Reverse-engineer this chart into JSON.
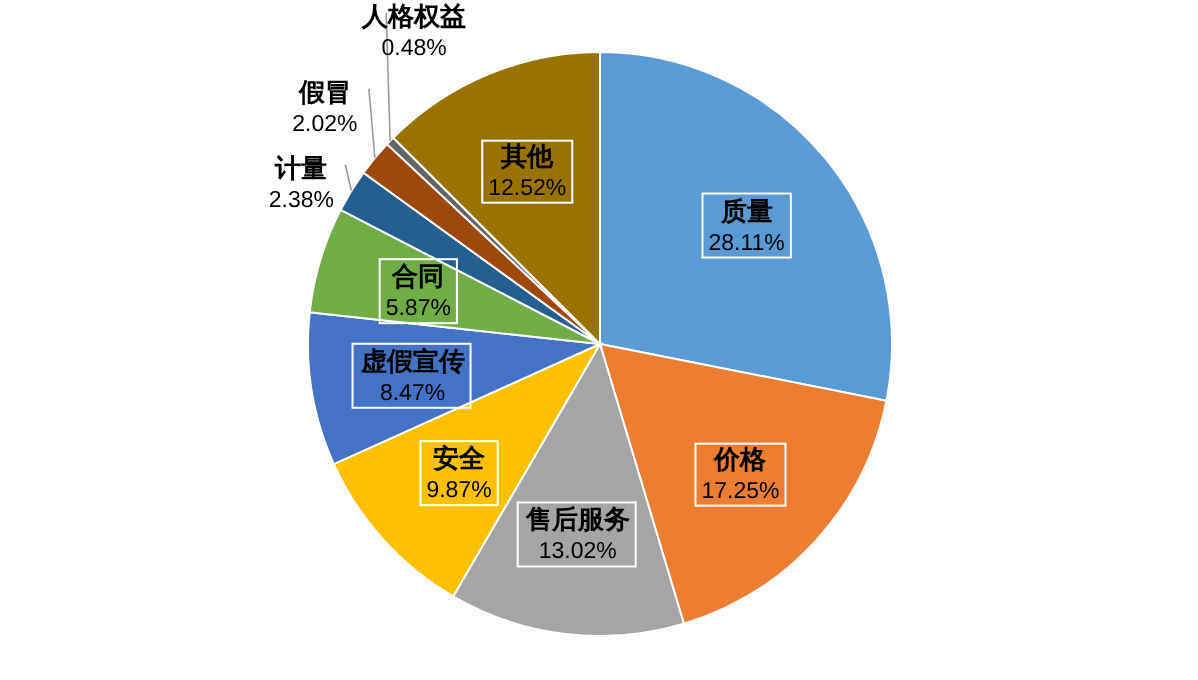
{
  "chart_data": {
    "type": "pie",
    "categories": [
      "质量",
      "价格",
      "售后服务",
      "安全",
      "虚假宣传",
      "合同",
      "计量",
      "假冒",
      "人格权益",
      "其他"
    ],
    "values": [
      28.11,
      17.25,
      13.02,
      9.87,
      8.47,
      5.87,
      2.38,
      2.02,
      0.48,
      12.52
    ],
    "value_labels": [
      "28.11%",
      "17.25%",
      "13.02%",
      "9.87%",
      "8.47%",
      "5.87%",
      "2.38%",
      "2.02%",
      "0.48%",
      "12.52%"
    ],
    "colors": [
      "#5b9bd5",
      "#ed7d31",
      "#a5a5a5",
      "#ffc000",
      "#4472c4",
      "#70ad47",
      "#255e91",
      "#9e480e",
      "#636363",
      "#997300"
    ]
  }
}
